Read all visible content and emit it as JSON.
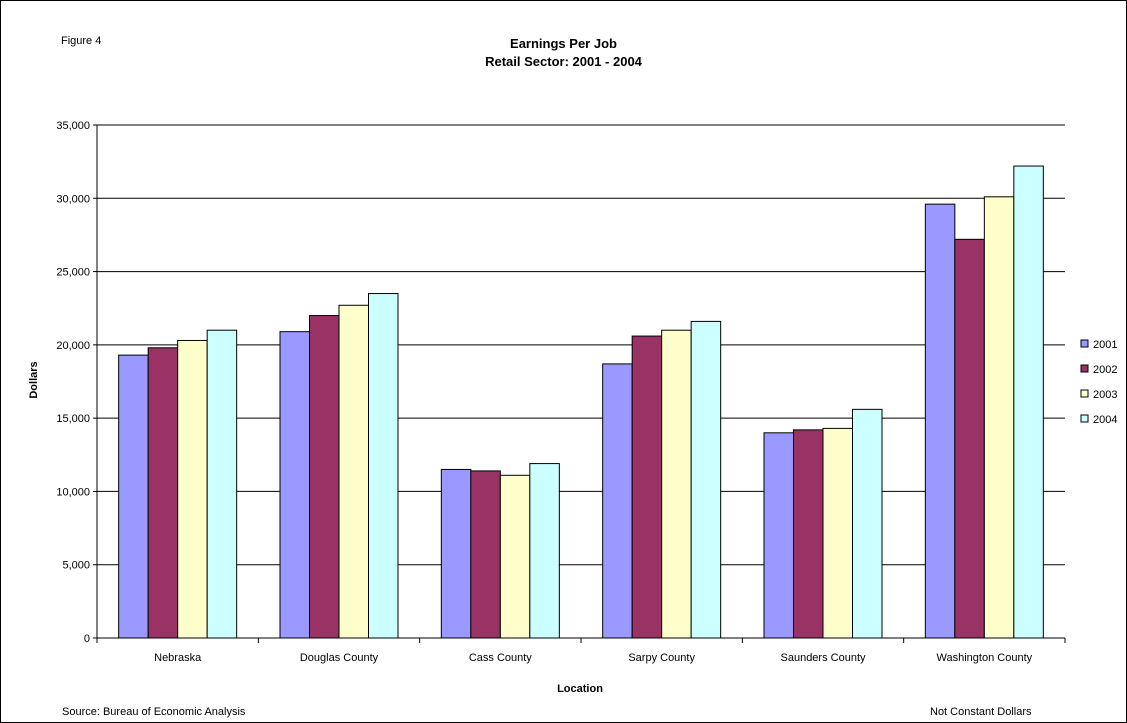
{
  "figure_label": "Figure 4",
  "source_note": "Source: Bureau of Economic Analysis",
  "dollars_note": "Not Constant Dollars",
  "chart_data": {
    "type": "bar",
    "title": "Earnings Per Job",
    "subtitle": "Retail Sector: 2001 - 2004",
    "xlabel": "Location",
    "ylabel": "Dollars",
    "ylim": [
      0,
      35000
    ],
    "yticks": [
      0,
      5000,
      10000,
      15000,
      20000,
      25000,
      30000,
      35000
    ],
    "ytick_labels": [
      "0",
      "5,000",
      "10,000",
      "15,000",
      "20,000",
      "25,000",
      "30,000",
      "35,000"
    ],
    "grid": true,
    "legend_position": "right",
    "categories": [
      "Nebraska",
      "Douglas County",
      "Cass County",
      "Sarpy County",
      "Saunders County",
      "Washington County"
    ],
    "series": [
      {
        "name": "2001",
        "color": "#9999ff",
        "values": [
          19300,
          20900,
          11500,
          18700,
          14000,
          29600
        ]
      },
      {
        "name": "2002",
        "color": "#993366",
        "values": [
          19800,
          22000,
          11400,
          20600,
          14200,
          27200
        ]
      },
      {
        "name": "2003",
        "color": "#ffffcc",
        "values": [
          20300,
          22700,
          11100,
          21000,
          14300,
          30100
        ]
      },
      {
        "name": "2004",
        "color": "#ccffff",
        "values": [
          21000,
          23500,
          11900,
          21600,
          15600,
          32200
        ]
      }
    ]
  }
}
